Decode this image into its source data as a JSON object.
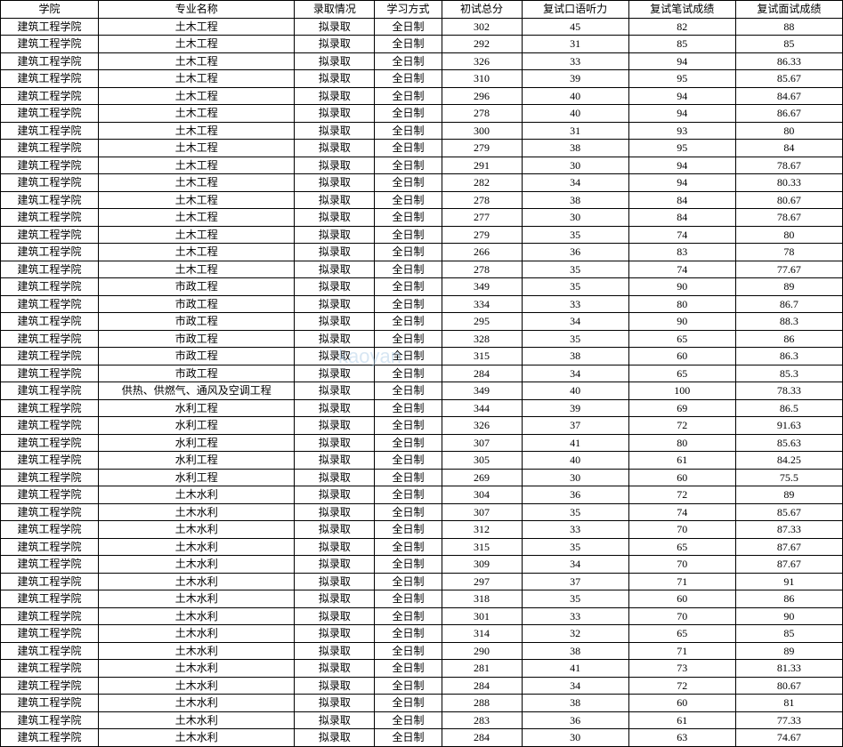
{
  "table": {
    "headers": {
      "college": "学院",
      "major": "专业名称",
      "admission": "录取情况",
      "study_mode": "学习方式",
      "initial_score": "初试总分",
      "oral_score": "复试口语听力",
      "written_score": "复试笔试成绩",
      "interview_score": "复试面试成绩"
    },
    "college_name": "建筑工程学院",
    "admission_status": "拟录取",
    "study_mode_value": "全日制",
    "rows": [
      {
        "major": "土木工程",
        "initial": "302",
        "oral": "45",
        "written": "82",
        "interview": "88"
      },
      {
        "major": "土木工程",
        "initial": "292",
        "oral": "31",
        "written": "85",
        "interview": "85"
      },
      {
        "major": "土木工程",
        "initial": "326",
        "oral": "33",
        "written": "94",
        "interview": "86.33"
      },
      {
        "major": "土木工程",
        "initial": "310",
        "oral": "39",
        "written": "95",
        "interview": "85.67"
      },
      {
        "major": "土木工程",
        "initial": "296",
        "oral": "40",
        "written": "94",
        "interview": "84.67"
      },
      {
        "major": "土木工程",
        "initial": "278",
        "oral": "40",
        "written": "94",
        "interview": "86.67"
      },
      {
        "major": "土木工程",
        "initial": "300",
        "oral": "31",
        "written": "93",
        "interview": "80"
      },
      {
        "major": "土木工程",
        "initial": "279",
        "oral": "38",
        "written": "95",
        "interview": "84"
      },
      {
        "major": "土木工程",
        "initial": "291",
        "oral": "30",
        "written": "94",
        "interview": "78.67"
      },
      {
        "major": "土木工程",
        "initial": "282",
        "oral": "34",
        "written": "94",
        "interview": "80.33"
      },
      {
        "major": "土木工程",
        "initial": "278",
        "oral": "38",
        "written": "84",
        "interview": "80.67"
      },
      {
        "major": "土木工程",
        "initial": "277",
        "oral": "30",
        "written": "84",
        "interview": "78.67"
      },
      {
        "major": "土木工程",
        "initial": "279",
        "oral": "35",
        "written": "74",
        "interview": "80"
      },
      {
        "major": "土木工程",
        "initial": "266",
        "oral": "36",
        "written": "83",
        "interview": "78"
      },
      {
        "major": "土木工程",
        "initial": "278",
        "oral": "35",
        "written": "74",
        "interview": "77.67"
      },
      {
        "major": "市政工程",
        "initial": "349",
        "oral": "35",
        "written": "90",
        "interview": "89"
      },
      {
        "major": "市政工程",
        "initial": "334",
        "oral": "33",
        "written": "80",
        "interview": "86.7"
      },
      {
        "major": "市政工程",
        "initial": "295",
        "oral": "34",
        "written": "90",
        "interview": "88.3"
      },
      {
        "major": "市政工程",
        "initial": "328",
        "oral": "35",
        "written": "65",
        "interview": "86"
      },
      {
        "major": "市政工程",
        "initial": "315",
        "oral": "38",
        "written": "60",
        "interview": "86.3"
      },
      {
        "major": "市政工程",
        "initial": "284",
        "oral": "34",
        "written": "65",
        "interview": "85.3"
      },
      {
        "major": "供热、供燃气、通风及空调工程",
        "initial": "349",
        "oral": "40",
        "written": "100",
        "interview": "78.33"
      },
      {
        "major": "水利工程",
        "initial": "344",
        "oral": "39",
        "written": "69",
        "interview": "86.5"
      },
      {
        "major": "水利工程",
        "initial": "326",
        "oral": "37",
        "written": "72",
        "interview": "91.63"
      },
      {
        "major": "水利工程",
        "initial": "307",
        "oral": "41",
        "written": "80",
        "interview": "85.63"
      },
      {
        "major": "水利工程",
        "initial": "305",
        "oral": "40",
        "written": "61",
        "interview": "84.25"
      },
      {
        "major": "水利工程",
        "initial": "269",
        "oral": "30",
        "written": "60",
        "interview": "75.5"
      },
      {
        "major": "土木水利",
        "initial": "304",
        "oral": "36",
        "written": "72",
        "interview": "89"
      },
      {
        "major": "土木水利",
        "initial": "307",
        "oral": "35",
        "written": "74",
        "interview": "85.67"
      },
      {
        "major": "土木水利",
        "initial": "312",
        "oral": "33",
        "written": "70",
        "interview": "87.33"
      },
      {
        "major": "土木水利",
        "initial": "315",
        "oral": "35",
        "written": "65",
        "interview": "87.67"
      },
      {
        "major": "土木水利",
        "initial": "309",
        "oral": "34",
        "written": "70",
        "interview": "87.67"
      },
      {
        "major": "土木水利",
        "initial": "297",
        "oral": "37",
        "written": "71",
        "interview": "91"
      },
      {
        "major": "土木水利",
        "initial": "318",
        "oral": "35",
        "written": "60",
        "interview": "86"
      },
      {
        "major": "土木水利",
        "initial": "301",
        "oral": "33",
        "written": "70",
        "interview": "90"
      },
      {
        "major": "土木水利",
        "initial": "314",
        "oral": "32",
        "written": "65",
        "interview": "85"
      },
      {
        "major": "土木水利",
        "initial": "290",
        "oral": "38",
        "written": "71",
        "interview": "89"
      },
      {
        "major": "土木水利",
        "initial": "281",
        "oral": "41",
        "written": "73",
        "interview": "81.33"
      },
      {
        "major": "土木水利",
        "initial": "284",
        "oral": "34",
        "written": "72",
        "interview": "80.67"
      },
      {
        "major": "土木水利",
        "initial": "288",
        "oral": "38",
        "written": "60",
        "interview": "81"
      },
      {
        "major": "土木水利",
        "initial": "283",
        "oral": "36",
        "written": "61",
        "interview": "77.33"
      },
      {
        "major": "土木水利",
        "initial": "284",
        "oral": "30",
        "written": "63",
        "interview": "74.67"
      }
    ],
    "column_widths": {
      "college": 110,
      "major": 220,
      "admission": 90,
      "study": 75,
      "initial": 90,
      "oral": 120,
      "written": 120,
      "interview": 120
    },
    "styling": {
      "font_size": 12,
      "row_height": 18.5,
      "border_color": "#000000",
      "background_color": "#ffffff",
      "font_family": "SimSun"
    },
    "watermark": {
      "text": "kaoyan",
      "color": "#b0cee8",
      "opacity": 0.5
    }
  }
}
